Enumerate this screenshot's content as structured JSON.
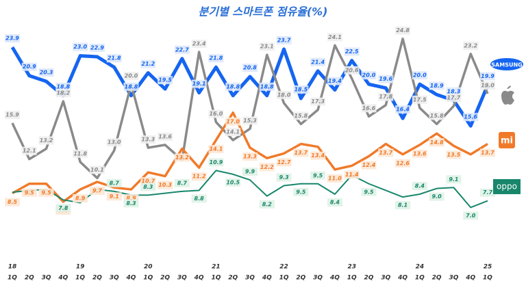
{
  "chart_data": {
    "type": "line",
    "title": "분기별 스마트폰 점유율(%)",
    "categories": [
      "1Q",
      "2Q",
      "3Q",
      "4Q",
      "1Q",
      "2Q",
      "3Q",
      "4Q",
      "1Q",
      "2Q",
      "3Q",
      "4Q",
      "1Q",
      "2Q",
      "3Q",
      "4Q",
      "1Q",
      "2Q",
      "3Q",
      "4Q",
      "1Q",
      "2Q",
      "3Q",
      "4Q",
      "1Q",
      "2Q",
      "3Q",
      "4Q",
      "1Q"
    ],
    "years": [
      "18",
      null,
      null,
      null,
      "19",
      null,
      null,
      null,
      "20",
      null,
      null,
      null,
      "21",
      null,
      null,
      null,
      "22",
      null,
      null,
      null,
      "23",
      null,
      null,
      null,
      "24",
      null,
      null,
      null,
      "25"
    ],
    "ylim": [
      4,
      26
    ],
    "series": [
      {
        "name": "SAMSUNG",
        "color": "#1565f0",
        "values": [
          23.9,
          20.9,
          20.3,
          18.8,
          23.0,
          22.9,
          21.8,
          18.8,
          21.2,
          19.5,
          22.7,
          19.1,
          21.8,
          18.8,
          20.8,
          18.8,
          23.7,
          18.5,
          21.4,
          19.4,
          22.5,
          20.0,
          19.6,
          16.4,
          20.0,
          18.9,
          18.3,
          15.6,
          19.9
        ],
        "value_labels": [
          "23.9",
          "20.9",
          "20.3",
          "18.8",
          "23.0",
          "22.9",
          "21.8",
          "18.8",
          "21.2",
          "19.5",
          "22.7",
          "19.1",
          "21.8",
          "18.8",
          "20.8",
          "18.8",
          "23.7",
          "18.5",
          "21.4",
          "19.4",
          "22.5",
          "20.0",
          "19.6",
          "16.4",
          "20.0",
          "18.9",
          "18.3",
          "15.6",
          "19.9"
        ]
      },
      {
        "name": null,
        "color": "#8a8a8a",
        "values": [
          15.9,
          12.1,
          13.2,
          18.2,
          11.8,
          10.1,
          13.0,
          20.0,
          13.3,
          13.6,
          12.0,
          23.4,
          16.0,
          14.1,
          15.3,
          23.1,
          18.0,
          15.8,
          17.3,
          24.1,
          20.6,
          16.6,
          17.8,
          24.8,
          17.5,
          15.8,
          17.7,
          23.2,
          19.0
        ],
        "value_labels": [
          "15.9",
          "12.1",
          "13.2",
          "18.2",
          "11.8",
          "10.1",
          "13.0",
          "20.0",
          "13.3",
          "13.6",
          null,
          "23.4",
          "16.0",
          "14.1",
          "15.3",
          "23.1",
          "18.0",
          "15.8",
          "17.3",
          "24.1",
          "20.6",
          "16.6",
          "17.8",
          "24.8",
          "17.5",
          "15.8",
          "17.7",
          "23.2",
          "19.0"
        ]
      },
      {
        "name": "mi",
        "color": "#f07a2a",
        "values": [
          8.5,
          9.5,
          9.5,
          7.6,
          8.9,
          9.7,
          9.1,
          8.9,
          10.7,
          10.3,
          13.2,
          11.2,
          14.1,
          17.0,
          13.3,
          12.2,
          12.7,
          13.7,
          13.4,
          11.0,
          11.4,
          12.4,
          13.7,
          12.6,
          13.6,
          14.8,
          13.5,
          12.6,
          13.7
        ],
        "value_labels": [
          "8.5",
          "9.5",
          "9.5",
          "7.6",
          "8.9",
          "9.7",
          "9.1",
          "8.9",
          "10.7",
          "10.3",
          "13.2",
          "11.2",
          "14.1",
          "17.0",
          "13.3",
          "12.2",
          "12.7",
          "13.7",
          "13.4",
          "11.0",
          "11.4",
          "12.4",
          "13.7",
          "12.6",
          "13.6",
          "14.8",
          "13.5",
          null,
          "13.7"
        ]
      },
      {
        "name": "oppo",
        "color": "#17866b",
        "values": [
          8.6,
          8.8,
          8.9,
          7.8,
          7.5,
          8.9,
          8.7,
          8.3,
          8.3,
          8.5,
          8.7,
          8.8,
          10.9,
          10.5,
          9.9,
          8.2,
          9.3,
          9.5,
          9.5,
          8.4,
          10.4,
          9.5,
          8.8,
          8.1,
          8.4,
          9.0,
          9.1,
          7.0,
          7.7
        ],
        "value_labels": [
          null,
          null,
          null,
          "7.8",
          null,
          null,
          "8.7",
          "8.3",
          "8.3",
          null,
          "8.7",
          "8.8",
          "10.9",
          "10.5",
          "9.9",
          "8.2",
          "9.3",
          "9.5",
          "9.5",
          "8.4",
          null,
          "9.5",
          null,
          "8.1",
          "8.4",
          "9.0",
          "9.1",
          "7.0",
          "7.7"
        ]
      }
    ]
  }
}
